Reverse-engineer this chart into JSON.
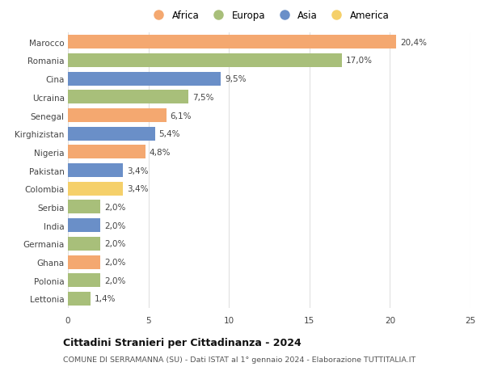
{
  "categories": [
    "Marocco",
    "Romania",
    "Cina",
    "Ucraina",
    "Senegal",
    "Kirghizistan",
    "Nigeria",
    "Pakistan",
    "Colombia",
    "Serbia",
    "India",
    "Germania",
    "Ghana",
    "Polonia",
    "Lettonia"
  ],
  "values": [
    20.4,
    17.0,
    9.5,
    7.5,
    6.1,
    5.4,
    4.8,
    3.4,
    3.4,
    2.0,
    2.0,
    2.0,
    2.0,
    2.0,
    1.4
  ],
  "labels": [
    "20,4%",
    "17,0%",
    "9,5%",
    "7,5%",
    "6,1%",
    "5,4%",
    "4,8%",
    "3,4%",
    "3,4%",
    "2,0%",
    "2,0%",
    "2,0%",
    "2,0%",
    "2,0%",
    "1,4%"
  ],
  "continents": [
    "Africa",
    "Europa",
    "Asia",
    "Europa",
    "Africa",
    "Asia",
    "Africa",
    "Asia",
    "America",
    "Europa",
    "Asia",
    "Europa",
    "Africa",
    "Europa",
    "Europa"
  ],
  "colors": {
    "Africa": "#F4A870",
    "Europa": "#A8BF7A",
    "Asia": "#6A8FC8",
    "America": "#F5D06A"
  },
  "legend_order": [
    "Africa",
    "Europa",
    "Asia",
    "America"
  ],
  "title": "Cittadini Stranieri per Cittadinanza - 2024",
  "subtitle": "COMUNE DI SERRAMANNA (SU) - Dati ISTAT al 1° gennaio 2024 - Elaborazione TUTTITALIA.IT",
  "xlim": [
    0,
    25
  ],
  "xticks": [
    0,
    5,
    10,
    15,
    20,
    25
  ],
  "background_color": "#ffffff",
  "grid_color": "#e0e0e0",
  "bar_height": 0.75
}
